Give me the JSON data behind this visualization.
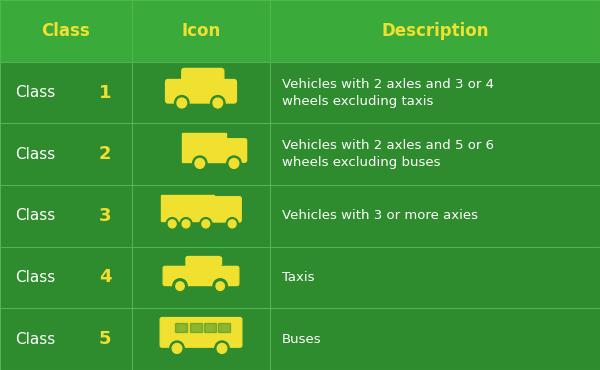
{
  "bg_color": "#2e8b2e",
  "header_bg": "#3aaa3a",
  "header_text_color": "#f0e030",
  "line_color": "#4db84d",
  "text_color": "#ffffff",
  "number_color": "#f0e030",
  "title_row": [
    "Class",
    "Icon",
    "Description"
  ],
  "class_numbers": [
    "1",
    "2",
    "3",
    "4",
    "5"
  ],
  "descriptions": [
    "Vehicles with 2 axles and 3 or 4\nwheels excluding taxis",
    "Vehicles with 2 axles and 5 or 6\nwheels excluding buses",
    "Vehicles with 3 or more axies",
    "Taxis",
    "Buses"
  ],
  "figsize": [
    6.0,
    3.7
  ],
  "dpi": 100
}
